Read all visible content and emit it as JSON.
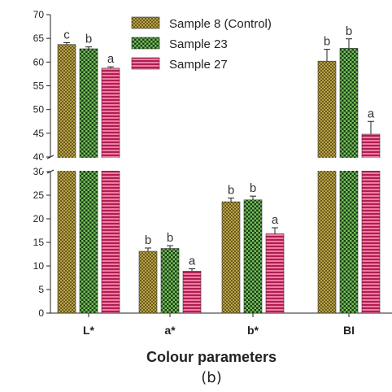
{
  "chart_data": {
    "type": "bar",
    "categories": [
      "L*",
      "a*",
      "b*",
      "BI"
    ],
    "series": [
      {
        "name": "Sample 8 (Control)",
        "values": [
          63.7,
          13.1,
          23.6,
          60.2
        ],
        "errors": [
          0.4,
          0.7,
          0.8,
          2.5
        ],
        "letters": [
          "c",
          "b",
          "b",
          "b"
        ],
        "color": "#a89536",
        "pattern": "dots"
      },
      {
        "name": "Sample 23",
        "values": [
          62.8,
          13.7,
          24.0,
          62.9
        ],
        "errors": [
          0.4,
          0.6,
          0.8,
          2.0
        ],
        "letters": [
          "b",
          "b",
          "b",
          "b"
        ],
        "color": "#3a7a2a",
        "pattern": "checker"
      },
      {
        "name": "Sample 27",
        "values": [
          58.7,
          8.9,
          16.8,
          44.8
        ],
        "errors": [
          0.3,
          0.5,
          1.3,
          2.7
        ],
        "letters": [
          "a",
          "a",
          "a",
          "a"
        ],
        "color": "#d62a66",
        "pattern": "stripes"
      }
    ],
    "xlabel": "Colour parameters",
    "ylabel": "",
    "caption": "(b)",
    "y_break": [
      30,
      40
    ],
    "ylim_lower": [
      0,
      30
    ],
    "ylim_upper": [
      40,
      70
    ],
    "yticks_lower": [
      "0",
      "5",
      "10",
      "15",
      "20",
      "25",
      "30"
    ],
    "yticks_upper": [
      "40",
      "45",
      "50",
      "55",
      "60",
      "65",
      "70"
    ],
    "legend_position": "top-center",
    "grid": false
  }
}
